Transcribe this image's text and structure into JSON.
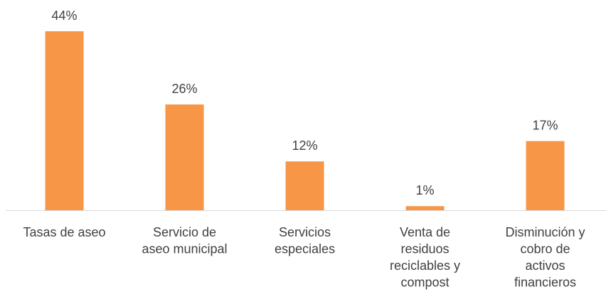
{
  "chart_data": {
    "type": "bar",
    "categories": [
      [
        "Tasas de aseo"
      ],
      [
        "Servicio de",
        "aseo municipal"
      ],
      [
        "Servicios",
        "especiales"
      ],
      [
        "Venta de",
        "residuos",
        "reciclables y",
        "compost"
      ],
      [
        "Disminución y",
        "cobro de",
        "activos",
        "financieros"
      ]
    ],
    "values": [
      44,
      26,
      12,
      1,
      17
    ],
    "value_labels": [
      "44%",
      "26%",
      "12%",
      "1%",
      "17%"
    ],
    "color": "#f79646"
  }
}
